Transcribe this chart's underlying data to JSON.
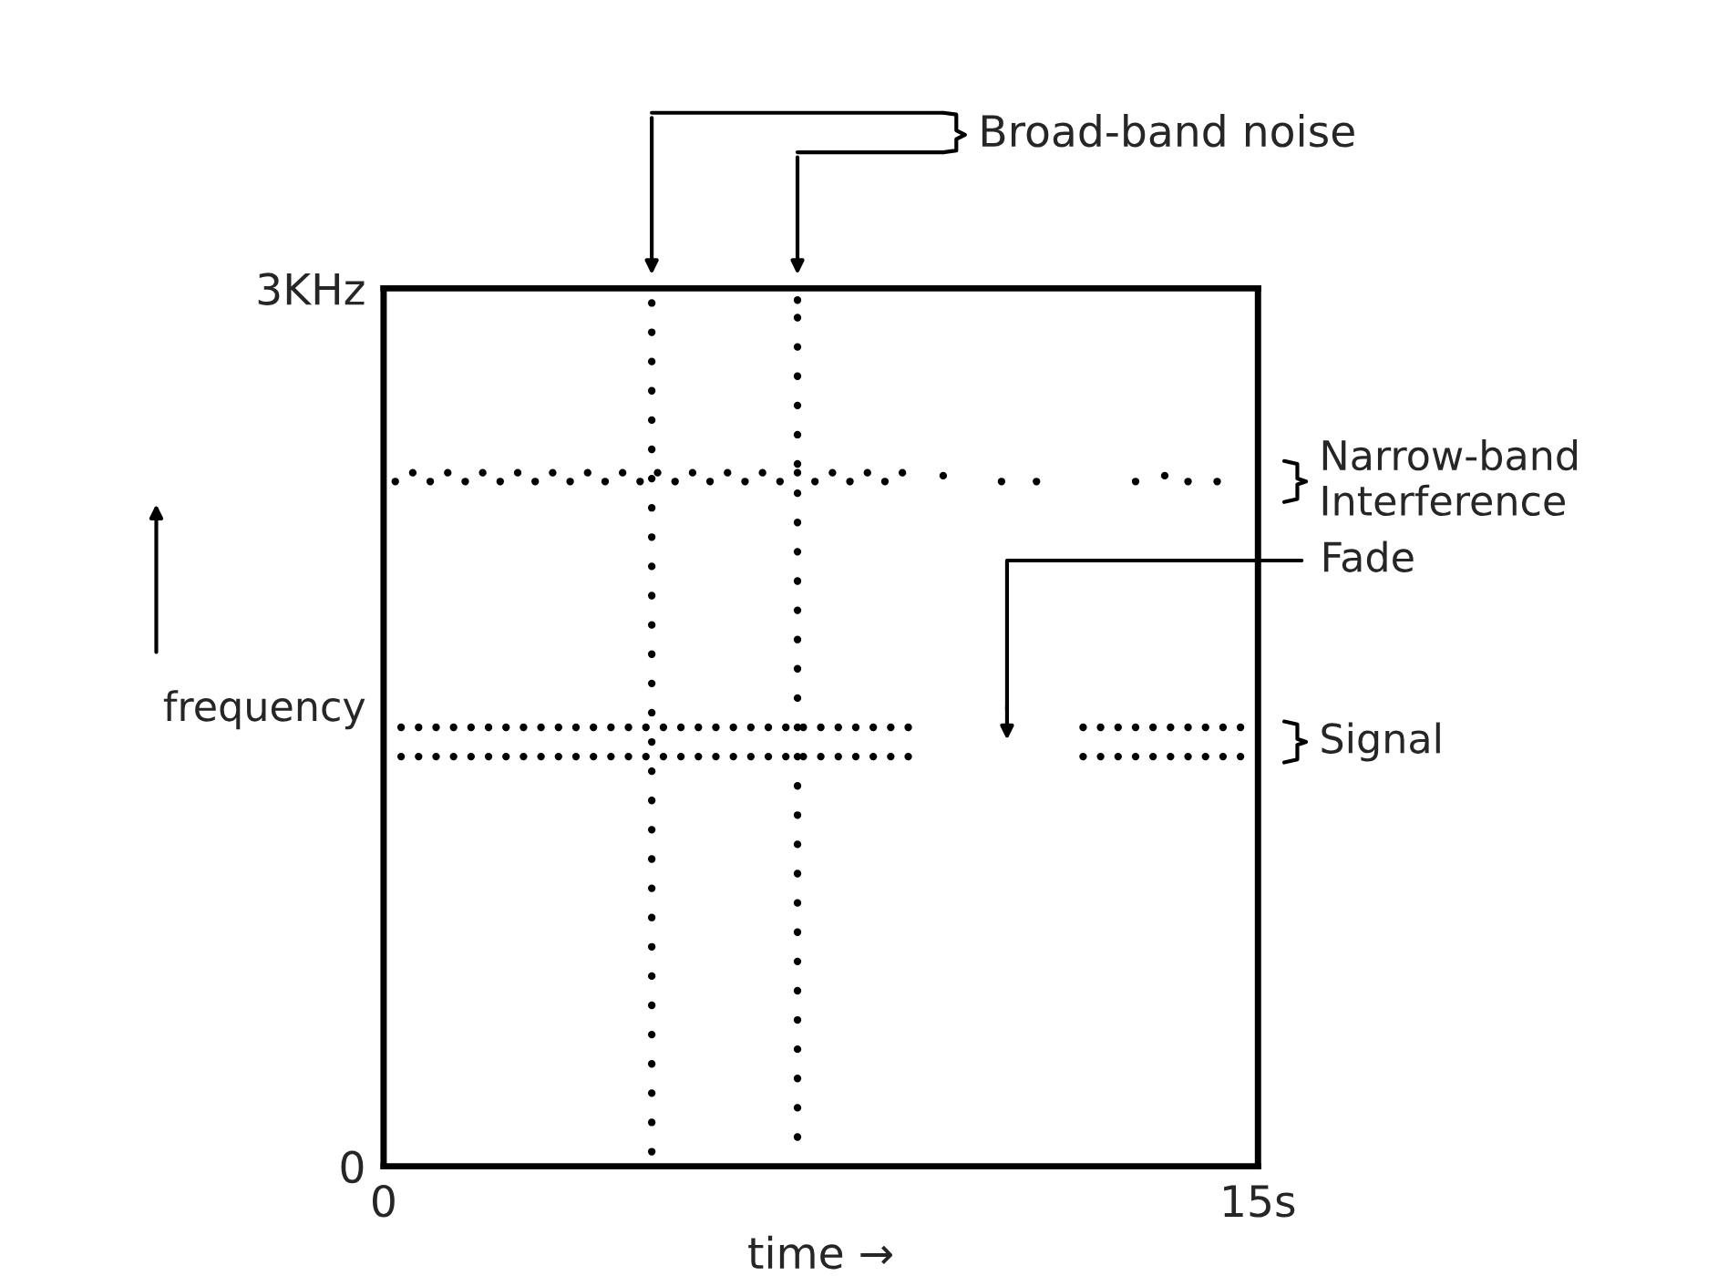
{
  "chart_data": {
    "type": "scatter",
    "xlabel": "time →",
    "ylabel": "frequency",
    "xlim": [
      0,
      15
    ],
    "ylim": [
      0,
      3
    ],
    "xticks": [
      0,
      {
        "value": 15,
        "label": "15s"
      }
    ],
    "yticks": [
      0,
      {
        "value": 3,
        "label": "3KHz"
      }
    ],
    "legend": false,
    "marker": "circle",
    "annotations": [
      "Broad-band noise",
      "Narrow-band Interference",
      "Fade",
      "Signal"
    ],
    "series": [
      {
        "color": "#000000",
        "x": [
          4.6,
          4.6,
          4.6,
          4.6,
          4.6,
          4.6,
          4.6,
          4.6,
          4.6,
          4.6,
          4.6,
          4.6,
          4.6,
          4.6,
          4.6,
          4.6,
          4.6,
          4.6,
          4.6,
          4.6,
          4.6,
          4.6,
          4.6,
          4.6,
          4.6,
          4.6,
          4.6,
          4.6,
          4.6,
          4.6
        ],
        "values": [
          0.05,
          0.15,
          0.25,
          0.35,
          0.45,
          0.55,
          0.65,
          0.75,
          0.85,
          0.95,
          1.05,
          1.15,
          1.25,
          1.35,
          1.45,
          1.55,
          1.65,
          1.75,
          1.85,
          1.95,
          2.05,
          2.15,
          2.25,
          2.35,
          2.45,
          2.55,
          2.65,
          2.75,
          2.85,
          2.95
        ]
      },
      {
        "color": "#000000",
        "x": [
          7.1,
          7.1,
          7.1,
          7.1,
          7.1,
          7.1,
          7.1,
          7.1,
          7.1,
          7.1,
          7.1,
          7.1,
          7.1,
          7.1,
          7.1,
          7.1,
          7.1,
          7.1,
          7.1,
          7.1,
          7.1,
          7.1,
          7.1,
          7.1,
          7.1,
          7.1,
          7.1,
          7.1,
          7.1,
          7.1
        ],
        "values": [
          0.1,
          0.2,
          0.3,
          0.4,
          0.5,
          0.6,
          0.7,
          0.8,
          0.9,
          1.0,
          1.1,
          1.2,
          1.3,
          1.4,
          1.5,
          1.6,
          1.7,
          1.8,
          1.9,
          2.0,
          2.1,
          2.2,
          2.3,
          2.4,
          2.5,
          2.6,
          2.7,
          2.8,
          2.9,
          2.96
        ]
      },
      {
        "color": "#000000",
        "x": [
          0.2,
          0.5,
          0.8,
          1.1,
          1.4,
          1.7,
          2.0,
          2.3,
          2.6,
          2.9,
          3.2,
          3.5,
          3.8,
          4.1,
          4.4,
          4.7,
          5.0,
          5.3,
          5.6,
          5.9,
          6.2,
          6.5,
          6.8,
          7.1,
          7.4,
          7.7,
          8.0,
          8.3,
          8.6,
          8.9,
          9.6,
          10.6,
          11.2,
          12.9,
          13.4,
          13.8,
          14.3
        ],
        "values": [
          2.34,
          2.37,
          2.34,
          2.37,
          2.34,
          2.37,
          2.34,
          2.37,
          2.34,
          2.37,
          2.34,
          2.37,
          2.34,
          2.37,
          2.34,
          2.37,
          2.34,
          2.37,
          2.34,
          2.37,
          2.34,
          2.37,
          2.34,
          2.37,
          2.34,
          2.37,
          2.34,
          2.37,
          2.34,
          2.37,
          2.36,
          2.34,
          2.34,
          2.34,
          2.36,
          2.34,
          2.34
        ]
      },
      {
        "color": "#000000",
        "x": [
          0.3,
          0.6,
          0.9,
          1.2,
          1.5,
          1.8,
          2.1,
          2.4,
          2.7,
          3.0,
          3.3,
          3.6,
          3.9,
          4.2,
          4.5,
          4.8,
          5.1,
          5.4,
          5.7,
          6.0,
          6.3,
          6.6,
          6.9,
          7.2,
          7.5,
          7.8,
          8.1,
          8.4,
          8.7,
          9.0,
          12.0,
          12.3,
          12.6,
          12.9,
          13.2,
          13.5,
          13.8,
          14.1,
          14.4,
          14.7
        ],
        "values": [
          1.4,
          1.4,
          1.4,
          1.4,
          1.4,
          1.4,
          1.4,
          1.4,
          1.4,
          1.4,
          1.4,
          1.4,
          1.4,
          1.4,
          1.4,
          1.4,
          1.4,
          1.4,
          1.4,
          1.4,
          1.4,
          1.4,
          1.4,
          1.4,
          1.4,
          1.4,
          1.4,
          1.4,
          1.4,
          1.4,
          1.4,
          1.4,
          1.4,
          1.4,
          1.4,
          1.4,
          1.4,
          1.4,
          1.4,
          1.4
        ]
      },
      {
        "color": "#000000",
        "x": [
          0.3,
          0.6,
          0.9,
          1.2,
          1.5,
          1.8,
          2.1,
          2.4,
          2.7,
          3.0,
          3.3,
          3.6,
          3.9,
          4.2,
          4.5,
          4.8,
          5.1,
          5.4,
          5.7,
          6.0,
          6.3,
          6.6,
          6.9,
          7.2,
          7.5,
          7.8,
          8.1,
          8.4,
          8.7,
          9.0,
          12.0,
          12.3,
          12.6,
          12.9,
          13.2,
          13.5,
          13.8,
          14.1,
          14.4,
          14.7
        ],
        "values": [
          1.5,
          1.5,
          1.5,
          1.5,
          1.5,
          1.5,
          1.5,
          1.5,
          1.5,
          1.5,
          1.5,
          1.5,
          1.5,
          1.5,
          1.5,
          1.5,
          1.5,
          1.5,
          1.5,
          1.5,
          1.5,
          1.5,
          1.5,
          1.5,
          1.5,
          1.5,
          1.5,
          1.5,
          1.5,
          1.5,
          1.5,
          1.5,
          1.5,
          1.5,
          1.5,
          1.5,
          1.5,
          1.5,
          1.5,
          1.5
        ]
      }
    ]
  }
}
